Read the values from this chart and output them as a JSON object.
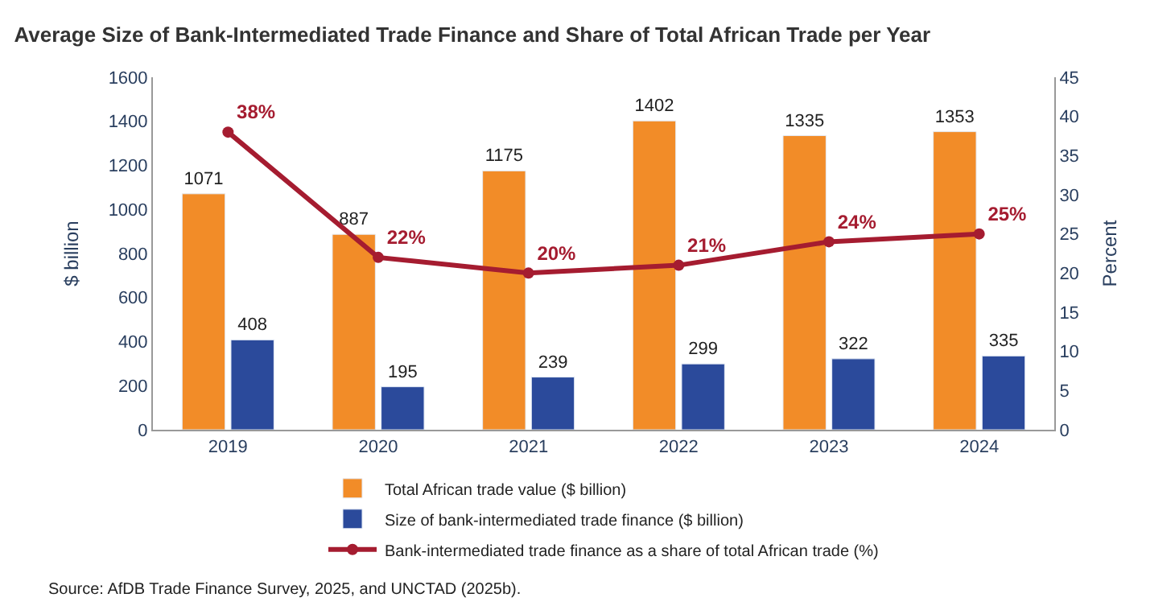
{
  "chart_data": {
    "type": "bar",
    "title": "Average Size of Bank-Intermediated Trade Finance and Share of Total African Trade per Year",
    "categories": [
      "2019",
      "2020",
      "2021",
      "2022",
      "2023",
      "2024"
    ],
    "series": [
      {
        "name": "Total African trade value ($ billion)",
        "color": "#f28c28",
        "values": [
          1071,
          887,
          1175,
          1402,
          1335,
          1353
        ],
        "value_labels": [
          "1071",
          "887",
          "1175",
          "1402",
          "1335",
          "1353"
        ]
      },
      {
        "name": "Size of bank-intermediated trade finance ($ billion)",
        "color": "#2b4a9b",
        "values": [
          408,
          195,
          239,
          299,
          322,
          335
        ],
        "value_labels": [
          "408",
          "195",
          "239",
          "299",
          "322",
          "335"
        ]
      },
      {
        "name": "Bank-intermediated trade finance as a share of total African trade (%)",
        "type": "line",
        "axis": "y2",
        "color": "#a51c30",
        "values": [
          38,
          22,
          20,
          21,
          24,
          25
        ],
        "value_labels": [
          "38%",
          "22%",
          "20%",
          "21%",
          "24%",
          "25%"
        ]
      }
    ],
    "ylabel": "$ billion",
    "y2label": "Percent",
    "ylim": [
      0,
      1600
    ],
    "yticks": [
      0,
      200,
      400,
      600,
      800,
      1000,
      1200,
      1400,
      1600
    ],
    "y2lim": [
      0,
      45
    ],
    "y2ticks": [
      0,
      5,
      10,
      15,
      20,
      25,
      30,
      35,
      40,
      45
    ],
    "marker": "circle",
    "line_style": "solid",
    "legend": "bottom",
    "annotations": [
      "Source: AfDB Trade Finance Survey, 2025, and UNCTAD (2025b)."
    ]
  }
}
